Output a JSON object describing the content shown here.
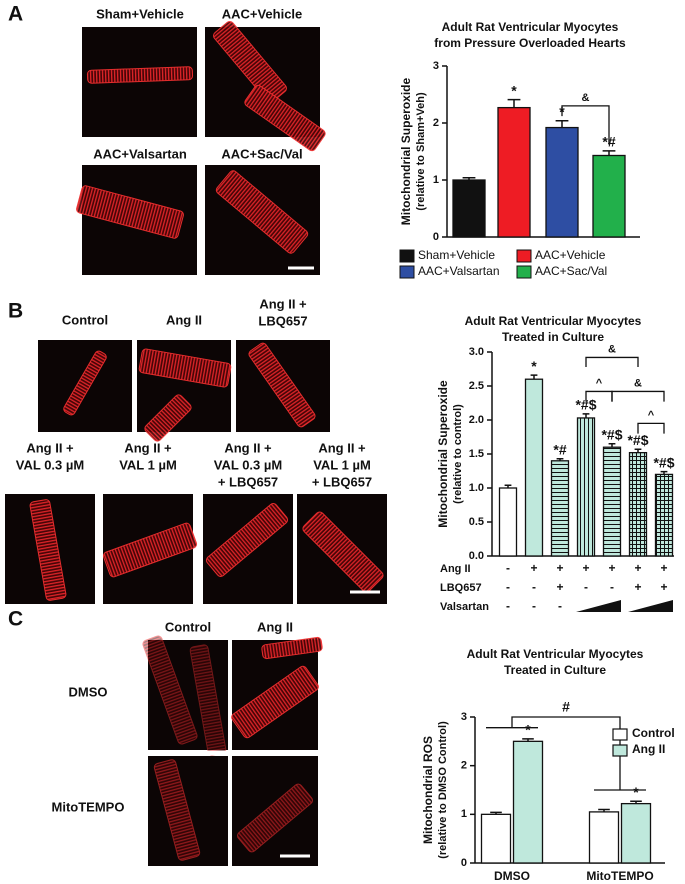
{
  "panel_labels": [
    "A",
    "B",
    "C"
  ],
  "micrographs": {
    "A": [
      "Sham+Vehicle",
      "AAC+Vehicle",
      "AAC+Valsartan",
      "AAC+Sac/Val"
    ],
    "B": [
      [
        "Control"
      ],
      [
        "Ang II"
      ],
      [
        "Ang II +",
        "LBQ657"
      ],
      [
        "Ang II +",
        "VAL 0.3 µM"
      ],
      [
        "Ang II +",
        "VAL 1 µM"
      ],
      [
        "Ang II +",
        "VAL 0.3 µM",
        "+ LBQ657"
      ],
      [
        "Ang II +",
        "VAL 1 µM",
        "+ LBQ657"
      ]
    ],
    "C": {
      "columns": [
        "Control",
        "Ang II"
      ],
      "rows": [
        "DMSO",
        "MitoTEMPO"
      ]
    }
  },
  "chart_data": [
    {
      "type": "bar",
      "title": "Adult Rat Ventricular Myocytes",
      "subtitle": "from Pressure Overloaded Hearts",
      "ylabel": [
        "Mitochondrial Superoxide",
        "(relative to Sham+Veh)"
      ],
      "categories": [
        "Sham+Vehicle",
        "AAC+Vehicle",
        "AAC+Valsartan",
        "AAC+Sac/Val"
      ],
      "values": [
        1.0,
        2.27,
        1.92,
        1.43
      ],
      "errors": [
        0.04,
        0.14,
        0.12,
        0.08
      ],
      "colors": [
        "#111111",
        "#ee1c24",
        "#2e4ea3",
        "#22b04b"
      ],
      "annotations": [
        null,
        "*",
        "*",
        "*#"
      ],
      "brackets": [
        "&"
      ],
      "ylim": [
        0,
        3
      ],
      "yticks": [
        0,
        1,
        2,
        3
      ],
      "legend": "below"
    },
    {
      "type": "bar",
      "title": "Adult Rat Ventricular Myocytes",
      "subtitle": "Treated in Culture",
      "ylabel": [
        "Mitochondrial Superoxide",
        "(relative to control)"
      ],
      "values": [
        1.0,
        2.6,
        1.4,
        2.03,
        1.6,
        1.52,
        1.2
      ],
      "errors": [
        0.04,
        0.06,
        0.03,
        0.06,
        0.05,
        0.05,
        0.04
      ],
      "color": "#bfe8dc",
      "fills": [
        "white",
        "solid",
        "horizontal",
        "vertical",
        "horizontal",
        "grid",
        "grid"
      ],
      "annotations": [
        null,
        "*",
        "*#",
        "*#$",
        "*#$",
        "*#$",
        "*#$"
      ],
      "brackets": [
        "&",
        "^",
        "&",
        "^"
      ],
      "ylim": [
        0,
        3
      ],
      "yticks": [
        {
          "value": 0,
          "label": "0.0"
        },
        0.5,
        {
          "value": 1,
          "label": "1.0"
        },
        1.5,
        {
          "value": 2,
          "label": "2.0"
        },
        2.5,
        {
          "value": 3,
          "label": "3.0"
        }
      ],
      "table": [
        {
          "label": "Ang II",
          "cells": [
            "-",
            "+",
            "+",
            "+",
            "+",
            "+",
            "+"
          ]
        },
        {
          "label": "LBQ657",
          "cells": [
            "-",
            "-",
            "+",
            "-",
            "-",
            "+",
            "+"
          ]
        },
        {
          "label": "Valsartan",
          "cells": [
            "-",
            "-",
            "-",
            null,
            null,
            null,
            null
          ]
        }
      ]
    },
    {
      "type": "bar",
      "title": "Adult Rat Ventricular Myocytes",
      "subtitle": "Treated in Culture",
      "ylabel": [
        "Mitochondrial ROS",
        "(relative to DMSO Control)"
      ],
      "categories": [
        "DMSO",
        "MitoTEMPO"
      ],
      "series": [
        {
          "name": "Control",
          "color": "#ffffff",
          "values": [
            1.0,
            1.05
          ],
          "errors": [
            0.04,
            0.05
          ],
          "annotations": [
            null,
            null
          ]
        },
        {
          "name": "Ang II",
          "color": "#bfe8dc",
          "values": [
            2.5,
            1.22
          ],
          "errors": [
            0.05,
            0.05
          ],
          "annotations": [
            "*",
            "*"
          ]
        }
      ],
      "brackets": [
        "#"
      ],
      "ylim": [
        0,
        3
      ],
      "yticks": [
        0,
        1,
        2,
        3
      ],
      "legend": "upper right"
    }
  ]
}
